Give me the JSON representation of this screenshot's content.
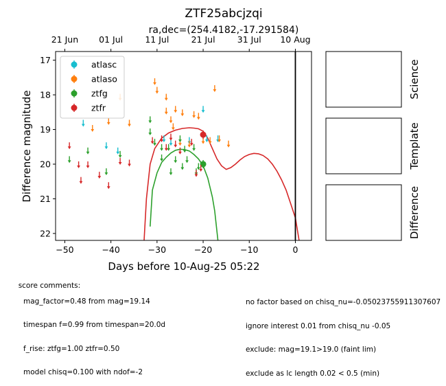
{
  "figure": {
    "title": "ZTF25abcjzqi",
    "subtitle": "ra,dec=(254.4182,-17.291584)"
  },
  "chart_data": {
    "type": "scatter",
    "title": "ZTF25abcjzqi",
    "subtitle": "ra,dec=(254.4182,-17.291584)",
    "xlabel": "Days before 10-Aug-25 05:22",
    "ylabel": "Difference magnitude",
    "xlim": [
      -52,
      3.5
    ],
    "ylim": [
      22.2,
      16.75
    ],
    "y_inverted": true,
    "xticks": [
      -50,
      -40,
      -30,
      -20,
      -10,
      0
    ],
    "yticks": [
      17,
      18,
      19,
      20,
      21,
      22
    ],
    "top_axis": {
      "ticks": [
        {
          "x": -50,
          "label": "21 Jun"
        },
        {
          "x": -40,
          "label": "01 Jul"
        },
        {
          "x": -30,
          "label": "11 Jul"
        },
        {
          "x": -20,
          "label": "21 Jul"
        },
        {
          "x": -10,
          "label": "31 Jul"
        },
        {
          "x": 0,
          "label": "10 Aug"
        }
      ]
    },
    "vline_x": 0,
    "legend_position": "upper-left",
    "series": [
      {
        "name": "atlasc",
        "color": "#17becf",
        "upper_limits": [
          [
            -46,
            18.8
          ],
          [
            -41,
            19.45
          ],
          [
            -38.5,
            19.6
          ],
          [
            -28.5,
            19.25
          ],
          [
            -27,
            19.35
          ],
          [
            -23,
            19.3
          ],
          [
            -20,
            18.4
          ],
          [
            -19.2,
            19.25
          ],
          [
            -16.8,
            19.25
          ]
        ],
        "detections": []
      },
      {
        "name": "atlaso",
        "color": "#ff7f0e",
        "upper_limits": [
          [
            -44,
            18.95
          ],
          [
            -40.5,
            18.75
          ],
          [
            -38,
            18.05
          ],
          [
            -36,
            18.8
          ],
          [
            -30.5,
            17.6
          ],
          [
            -30,
            17.85
          ],
          [
            -28,
            18.05
          ],
          [
            -28,
            18.45
          ],
          [
            -27,
            18.7
          ],
          [
            -26.5,
            18.9
          ],
          [
            -26,
            18.4
          ],
          [
            -25,
            19.35
          ],
          [
            -24.5,
            18.5
          ],
          [
            -23,
            19.4
          ],
          [
            -22,
            18.55
          ],
          [
            -21,
            18.6
          ],
          [
            -20,
            19.3
          ],
          [
            -18.5,
            19.3
          ],
          [
            -17.5,
            17.8
          ],
          [
            -16.5,
            19.25
          ],
          [
            -14.5,
            19.4
          ]
        ],
        "detections": []
      },
      {
        "name": "ztfg",
        "color": "#2ca02c",
        "upper_limits": [
          [
            -49,
            19.85
          ],
          [
            -45,
            19.6
          ],
          [
            -41,
            20.2
          ],
          [
            -38,
            19.7
          ],
          [
            -31.5,
            18.7
          ],
          [
            -31.5,
            19.05
          ],
          [
            -30.5,
            19.35
          ],
          [
            -29,
            19.5
          ],
          [
            -29,
            19.8
          ],
          [
            -27.5,
            19.5
          ],
          [
            -27,
            20.2
          ],
          [
            -26,
            19.85
          ],
          [
            -25,
            19.25
          ],
          [
            -24.5,
            20.05
          ],
          [
            -24,
            19.55
          ],
          [
            -23.5,
            19.85
          ],
          [
            -22,
            19.5
          ],
          [
            -21.5,
            20.2
          ],
          [
            -21,
            20.05
          ]
        ],
        "detections": [
          [
            -20,
            20.0
          ]
        ]
      },
      {
        "name": "ztfr",
        "color": "#d62728",
        "upper_limits": [
          [
            -49,
            19.45
          ],
          [
            -47,
            20.0
          ],
          [
            -46.5,
            20.45
          ],
          [
            -45,
            20.0
          ],
          [
            -42.5,
            20.3
          ],
          [
            -40.5,
            20.6
          ],
          [
            -38,
            19.9
          ],
          [
            -36,
            19.95
          ],
          [
            -31,
            19.3
          ],
          [
            -29,
            19.25
          ],
          [
            -28,
            19.5
          ],
          [
            -27,
            19.2
          ],
          [
            -26,
            19.4
          ],
          [
            -25,
            19.6
          ],
          [
            -22.5,
            19.35
          ],
          [
            -21.5,
            20.25
          ],
          [
            -20.5,
            20.1
          ]
        ],
        "detections": [
          [
            -20,
            19.15
          ]
        ]
      }
    ],
    "models": [
      {
        "name": "ztfg",
        "color": "#2ca02c",
        "curve": [
          [
            -31.5,
            21.8
          ],
          [
            -31,
            20.75
          ],
          [
            -30,
            20.25
          ],
          [
            -29,
            19.95
          ],
          [
            -28,
            19.8
          ],
          [
            -27,
            19.68
          ],
          [
            -26,
            19.6
          ],
          [
            -25,
            19.57
          ],
          [
            -24,
            19.58
          ],
          [
            -23,
            19.62
          ],
          [
            -22,
            19.72
          ],
          [
            -21,
            19.85
          ],
          [
            -20,
            20.05
          ],
          [
            -19,
            20.4
          ],
          [
            -18,
            20.95
          ],
          [
            -17.5,
            21.35
          ],
          [
            -16.8,
            22.2
          ]
        ]
      },
      {
        "name": "ztfr",
        "color": "#d62728",
        "curve": [
          [
            -32.8,
            22.2
          ],
          [
            -32.3,
            21.0
          ],
          [
            -31.5,
            20.0
          ],
          [
            -30.5,
            19.55
          ],
          [
            -29,
            19.25
          ],
          [
            -27.5,
            19.1
          ],
          [
            -26,
            19.02
          ],
          [
            -24.5,
            18.97
          ],
          [
            -23,
            18.95
          ],
          [
            -22,
            18.96
          ],
          [
            -21,
            18.98
          ],
          [
            -20,
            19.05
          ],
          [
            -19,
            19.25
          ],
          [
            -18,
            19.55
          ],
          [
            -17,
            19.85
          ],
          [
            -16,
            20.05
          ],
          [
            -15,
            20.15
          ],
          [
            -14,
            20.1
          ],
          [
            -13,
            20.0
          ],
          [
            -12,
            19.88
          ],
          [
            -11,
            19.78
          ],
          [
            -10,
            19.72
          ],
          [
            -9,
            19.69
          ],
          [
            -8,
            19.7
          ],
          [
            -7,
            19.75
          ],
          [
            -6,
            19.85
          ],
          [
            -5,
            20.0
          ],
          [
            -4,
            20.2
          ],
          [
            -3,
            20.45
          ],
          [
            -2,
            20.75
          ],
          [
            -1,
            21.15
          ],
          [
            0,
            21.55
          ],
          [
            0.8,
            22.2
          ]
        ]
      }
    ]
  },
  "panels": [
    {
      "label": "Science"
    },
    {
      "label": "Template"
    },
    {
      "label": "Difference"
    }
  ],
  "comments": {
    "heading": "score comments:",
    "left_lines": [
      "mag_factor=0.48 from mag=19.14",
      "timespan f=0.99 from timespan=20.0d",
      "f_rise: ztfg=1.00 ztfr=0.50",
      "model chisq=0.100 with ndof=-2"
    ],
    "right_lines": [
      "no factor based on chisq_nu=-0.05023755911307607",
      "ignore interest 0.01 from chisq_nu -0.05",
      "exclude: mag=19.1>19.0 (faint lim)",
      "exclude as lc length 0.02 < 0.5 (min)"
    ]
  }
}
